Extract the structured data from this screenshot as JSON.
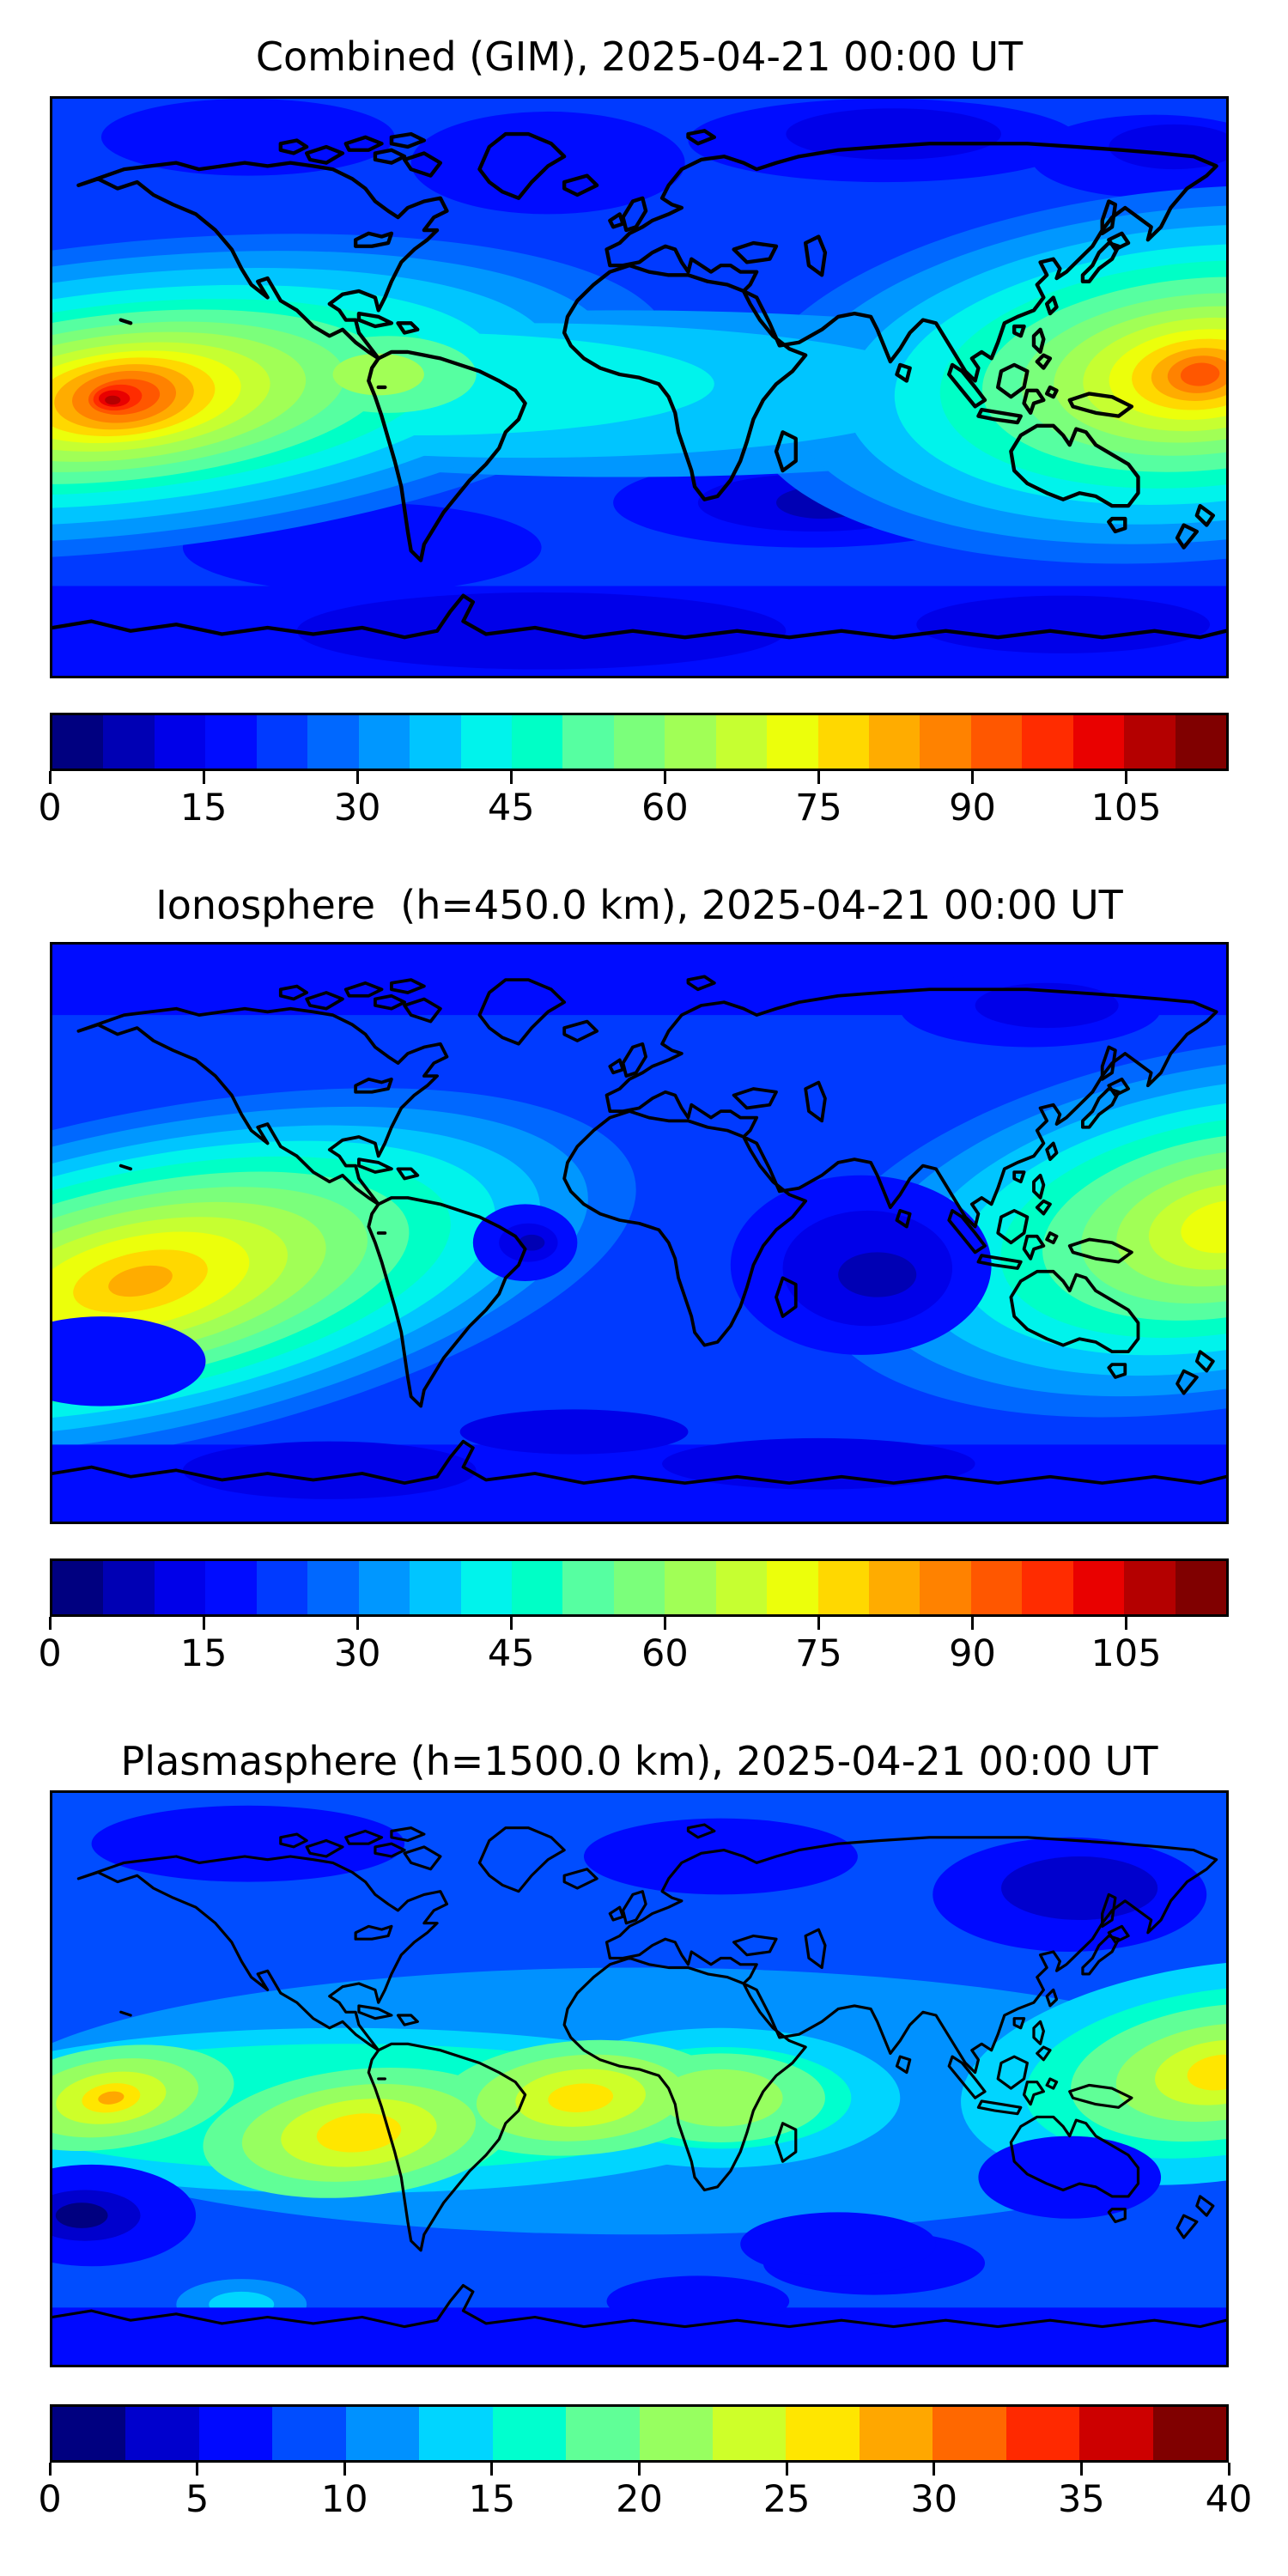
{
  "page": {
    "background": "#ffffff"
  },
  "panels": [
    {
      "id": "combined",
      "title": "Combined (GIM), 2025-04-21 00:00 UT",
      "colorbar": {
        "min": 0,
        "max": 115,
        "ticks": [
          0,
          15,
          30,
          45,
          60,
          75,
          90,
          105
        ],
        "colors": [
          "#000080",
          "#0000B4",
          "#0000E9",
          "#000CFF",
          "#003AFF",
          "#0068FF",
          "#0097FF",
          "#00C5FF",
          "#00F3EC",
          "#00FFC6",
          "#56FFA1",
          "#7BFF7B",
          "#A1FF56",
          "#C6FF31",
          "#ECFF0B",
          "#FFD800",
          "#FFAC00",
          "#FF8200",
          "#FF5700",
          "#FF2C00",
          "#E90100",
          "#B40000",
          "#800000"
        ]
      }
    },
    {
      "id": "ionosphere",
      "title": "Ionosphere  (h=450.0 km), 2025-04-21 00:00 UT",
      "colorbar": {
        "min": 0,
        "max": 115,
        "ticks": [
          0,
          15,
          30,
          45,
          60,
          75,
          90,
          105
        ],
        "colors": [
          "#000080",
          "#0000B4",
          "#0000E9",
          "#000CFF",
          "#003AFF",
          "#0068FF",
          "#0097FF",
          "#00C5FF",
          "#00F3EC",
          "#00FFC6",
          "#56FFA1",
          "#7BFF7B",
          "#A1FF56",
          "#C6FF31",
          "#ECFF0B",
          "#FFD800",
          "#FFAC00",
          "#FF8200",
          "#FF5700",
          "#FF2C00",
          "#E90100",
          "#B40000",
          "#800000"
        ]
      }
    },
    {
      "id": "plasmasphere",
      "title": "Plasmasphere (h=1500.0 km), 2025-04-21 00:00 UT",
      "colorbar": {
        "min": 0,
        "max": 40,
        "ticks": [
          0,
          5,
          10,
          15,
          20,
          25,
          30,
          35,
          40
        ],
        "colors": [
          "#000080",
          "#0000CD",
          "#0009FF",
          "#004DFF",
          "#0091FF",
          "#00D5FF",
          "#00FFCE",
          "#60FF97",
          "#97FF60",
          "#CEFF29",
          "#FFE600",
          "#FFA700",
          "#FF6800",
          "#FF2900",
          "#CD0000",
          "#800000"
        ]
      }
    }
  ],
  "chart_data": [
    {
      "type": "heatmap",
      "title": "Combined (GIM), 2025-04-21 00:00 UT",
      "projection": "equirectangular",
      "lon_range": [
        -180,
        180
      ],
      "lat_range": [
        -90,
        90
      ],
      "colormap": "jet",
      "value_range": [
        0,
        115
      ],
      "contour_interval": 5,
      "colorbar_ticks": [
        0,
        15,
        30,
        45,
        60,
        75,
        90,
        105
      ],
      "legend_position": "bottom",
      "grid": false,
      "maxima": [
        {
          "lon": -158,
          "lat": -3,
          "value": 110,
          "region": "eastern equatorial Pacific"
        },
        {
          "lon": 172,
          "lat": 4,
          "value": 93,
          "region": "western equatorial Pacific"
        }
      ],
      "equatorial_band_value": 45,
      "minima": [
        {
          "region": "southern Indian Ocean",
          "value": 6
        },
        {
          "region": "high northern latitudes",
          "value": 12
        },
        {
          "region": "southern high latitudes",
          "value": 10
        }
      ]
    },
    {
      "type": "heatmap",
      "title": "Ionosphere  (h=450.0 km), 2025-04-21 00:00 UT",
      "projection": "equirectangular",
      "lon_range": [
        -180,
        180
      ],
      "lat_range": [
        -90,
        90
      ],
      "colormap": "jet",
      "value_range": [
        0,
        115
      ],
      "contour_interval": 5,
      "colorbar_ticks": [
        0,
        15,
        30,
        45,
        60,
        75,
        90,
        105
      ],
      "legend_position": "bottom",
      "grid": false,
      "maxima": [
        {
          "lon": -153,
          "lat": -16,
          "value": 82,
          "region": "south-central Pacific"
        },
        {
          "lon": 180,
          "lat": -8,
          "value": 72,
          "region": "western Pacific near dateline"
        }
      ],
      "equatorial_band_value": 35,
      "minima": [
        {
          "region": "central Indian Ocean",
          "value": 5
        },
        {
          "region": "mid South Atlantic",
          "value": 8
        }
      ]
    },
    {
      "type": "heatmap",
      "title": "Plasmasphere (h=1500.0 km), 2025-04-21 00:00 UT",
      "projection": "equirectangular",
      "lon_range": [
        -180,
        180
      ],
      "lat_range": [
        -90,
        90
      ],
      "colormap": "jet",
      "value_range": [
        0,
        40
      ],
      "contour_interval": 2.5,
      "colorbar_ticks": [
        0,
        5,
        10,
        15,
        20,
        25,
        30,
        35,
        40
      ],
      "legend_position": "bottom",
      "grid": false,
      "maxima": [
        {
          "lon": -162,
          "lat": -6,
          "value": 28,
          "region": "central Pacific"
        },
        {
          "lon": -86,
          "lat": -17,
          "value": 26,
          "region": "western South America"
        },
        {
          "lon": -18,
          "lat": -6,
          "value": 26,
          "region": "equatorial Atlantic"
        },
        {
          "lon": 25,
          "lat": -6,
          "value": 21,
          "region": "central Africa"
        },
        {
          "lon": 178,
          "lat": 2,
          "value": 26,
          "region": "western Pacific"
        }
      ],
      "equatorial_band_value": 15,
      "minima": [
        {
          "region": "south-east Pacific",
          "value": 2
        },
        {
          "region": "north-west Pacific near Kamchatka",
          "value": 5
        }
      ]
    }
  ]
}
